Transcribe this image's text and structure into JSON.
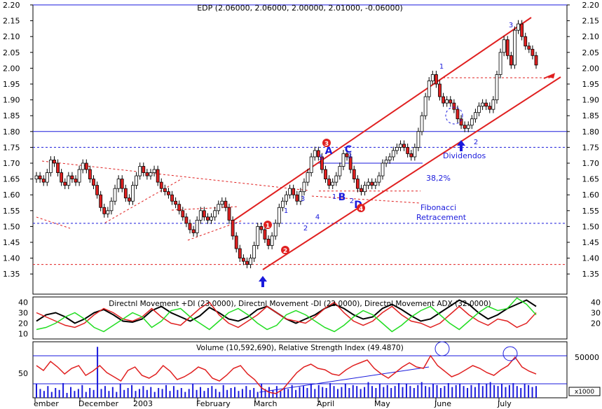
{
  "chart_data": [
    {
      "type": "candlestick",
      "title": "EDP (2.06000, 2.06000, 2.00000, 2.01000, -0.06000)",
      "ylim": [
        1.32,
        2.2
      ],
      "yticks": [
        "2.20",
        "2.15",
        "2.10",
        "2.05",
        "2.00",
        "1.95",
        "1.90",
        "1.85",
        "1.80",
        "1.75",
        "1.70",
        "1.65",
        "1.60",
        "1.55",
        "1.50",
        "1.45",
        "1.40",
        "1.35"
      ],
      "xticks": [
        "ember",
        "December",
        "2003",
        "February",
        "March",
        "April",
        "May",
        "June",
        "July"
      ],
      "close_series": [
        1.66,
        1.65,
        1.64,
        1.67,
        1.71,
        1.7,
        1.67,
        1.64,
        1.63,
        1.66,
        1.65,
        1.64,
        1.68,
        1.7,
        1.68,
        1.65,
        1.63,
        1.6,
        1.56,
        1.54,
        1.55,
        1.58,
        1.62,
        1.65,
        1.62,
        1.59,
        1.58,
        1.63,
        1.66,
        1.69,
        1.67,
        1.66,
        1.67,
        1.68,
        1.64,
        1.62,
        1.61,
        1.6,
        1.58,
        1.57,
        1.55,
        1.53,
        1.51,
        1.49,
        1.48,
        1.52,
        1.55,
        1.53,
        1.52,
        1.53,
        1.55,
        1.57,
        1.58,
        1.56,
        1.52,
        1.47,
        1.43,
        1.4,
        1.39,
        1.38,
        1.4,
        1.44,
        1.5,
        1.49,
        1.46,
        1.44,
        1.47,
        1.51,
        1.56,
        1.58,
        1.6,
        1.62,
        1.6,
        1.58,
        1.61,
        1.64,
        1.67,
        1.72,
        1.74,
        1.72,
        1.68,
        1.65,
        1.63,
        1.64,
        1.66,
        1.69,
        1.73,
        1.72,
        1.68,
        1.65,
        1.62,
        1.61,
        1.63,
        1.64,
        1.63,
        1.64,
        1.66,
        1.7,
        1.71,
        1.72,
        1.74,
        1.75,
        1.76,
        1.75,
        1.73,
        1.72,
        1.75,
        1.8,
        1.85,
        1.91,
        1.96,
        1.98,
        1.95,
        1.91,
        1.89,
        1.9,
        1.89,
        1.87,
        1.84,
        1.82,
        1.81,
        1.82,
        1.84,
        1.86,
        1.88,
        1.89,
        1.88,
        1.87,
        1.9,
        1.98,
        2.05,
        2.09,
        2.04,
        2.01,
        2.12,
        2.14,
        2.1,
        2.07,
        2.06,
        2.04,
        2.01
      ],
      "hlines_solid": [
        {
          "value": 2.2,
          "color": "#1a1adc"
        },
        {
          "value": 1.8,
          "color": "#1a1adc"
        },
        {
          "value": 1.7,
          "color": "#1a1adc"
        }
      ],
      "hlines_dashed": [
        {
          "value": 1.75,
          "color": "#1a1adc"
        },
        {
          "value": 1.51,
          "color": "#1a1adc"
        },
        {
          "value": 1.38,
          "color": "#e02020"
        },
        {
          "value": 1.97,
          "color": "#e02020"
        },
        {
          "value": 1.612,
          "color": "#e02020"
        }
      ],
      "annotations": {
        "fib_pct": "38,2%",
        "fib_name": "Fibonacci",
        "fib_sub": "Retracement",
        "dividendos": "Dividendos",
        "wave_labels": [
          "A",
          "B",
          "C",
          "D"
        ],
        "wave_small": [
          "1",
          "2",
          "3",
          "4",
          "5",
          "1",
          "2",
          "3",
          "1",
          "2",
          "3"
        ],
        "circled": [
          "1",
          "2",
          "3",
          "4"
        ]
      },
      "colors": {
        "up": "#ffffff",
        "down": "#e02020",
        "outline": "#000000",
        "channel": "#e02020",
        "guide": "#1a1adc"
      }
    },
    {
      "type": "line",
      "title": "Directnl Movement +DI (23.0000), Directnl Movement -DI (22.0000), Directnl Movement ADX (32.0000)",
      "ylim": [
        5,
        45
      ],
      "yticks_left": [
        "40",
        "30",
        "20",
        "10"
      ],
      "yticks_right": [
        "40",
        "30",
        "20"
      ],
      "series": [
        {
          "color": "#000000",
          "values": [
            22,
            28,
            30,
            26,
            20,
            24,
            30,
            33,
            28,
            22,
            21,
            24,
            32,
            36,
            30,
            26,
            22,
            27,
            35,
            30,
            24,
            22,
            26,
            33,
            36,
            30,
            24,
            20,
            24,
            28,
            34,
            38,
            34,
            28,
            24,
            26,
            34,
            38,
            33,
            27,
            22,
            24,
            30,
            36,
            42,
            38,
            30,
            24,
            28,
            34,
            38,
            42,
            36
          ]
        },
        {
          "color": "#e02020",
          "values": [
            30,
            26,
            22,
            18,
            16,
            20,
            28,
            34,
            30,
            24,
            22,
            26,
            34,
            26,
            20,
            18,
            26,
            34,
            40,
            28,
            20,
            16,
            22,
            28,
            36,
            30,
            24,
            22,
            20,
            26,
            34,
            40,
            30,
            22,
            18,
            22,
            30,
            36,
            28,
            22,
            20,
            16,
            20,
            28,
            36,
            28,
            22,
            18,
            24,
            22,
            16,
            20,
            30
          ]
        },
        {
          "color": "#22dd22",
          "values": [
            14,
            16,
            20,
            26,
            30,
            24,
            16,
            12,
            18,
            24,
            30,
            26,
            16,
            22,
            32,
            34,
            26,
            20,
            14,
            22,
            30,
            34,
            28,
            20,
            14,
            18,
            28,
            32,
            28,
            22,
            16,
            12,
            18,
            26,
            32,
            28,
            20,
            12,
            18,
            26,
            32,
            36,
            28,
            20,
            14,
            22,
            30,
            36,
            32,
            34,
            44,
            38,
            28
          ]
        }
      ]
    },
    {
      "type": "line+bar",
      "title": "Volume (10,592,690), Relative Strength Index (49.4870)",
      "yticks_left": [
        "50"
      ],
      "yticks_right": [
        "50000"
      ],
      "volume_unit": "x1000",
      "rsi_series": [
        62,
        55,
        68,
        60,
        50,
        58,
        62,
        48,
        54,
        62,
        52,
        46,
        40,
        55,
        60,
        48,
        44,
        50,
        62,
        54,
        42,
        46,
        52,
        60,
        56,
        44,
        40,
        48,
        58,
        62,
        50,
        42,
        30,
        24,
        22,
        28,
        40,
        52,
        60,
        64,
        58,
        56,
        50,
        48,
        56,
        62,
        66,
        70,
        58,
        50,
        44,
        52,
        60,
        66,
        60,
        58,
        76,
        62,
        54,
        46,
        50,
        56,
        62,
        58,
        52,
        48,
        56,
        62,
        74,
        60,
        54,
        50
      ],
      "volume_bars": [
        14,
        9,
        7,
        12,
        6,
        10,
        8,
        15,
        5,
        11,
        7,
        9,
        13,
        6,
        10,
        8,
        52,
        9,
        12,
        7,
        11,
        6,
        14,
        8,
        10,
        13,
        7,
        9,
        12,
        8,
        11,
        6,
        10,
        9,
        13,
        7,
        12,
        8,
        10,
        6,
        9,
        14,
        8,
        11,
        7,
        10,
        12,
        9,
        6,
        13,
        8,
        10,
        11,
        7,
        9,
        12,
        8,
        10,
        6,
        14,
        9,
        11,
        8,
        12,
        7,
        10,
        9,
        13,
        8,
        11,
        12,
        10,
        14,
        9,
        13,
        11,
        10,
        15,
        12,
        9,
        11,
        14,
        10,
        13,
        12,
        9,
        11,
        16,
        12,
        10,
        14,
        11,
        13,
        10,
        12,
        15,
        11,
        14,
        12,
        10,
        13,
        16,
        12,
        11,
        14,
        13,
        10,
        12,
        15,
        11,
        13,
        14,
        12,
        10,
        13,
        11,
        15,
        12,
        14,
        16,
        13,
        12,
        14,
        11,
        13,
        15,
        12,
        10,
        14,
        13,
        11,
        12
      ]
    }
  ]
}
